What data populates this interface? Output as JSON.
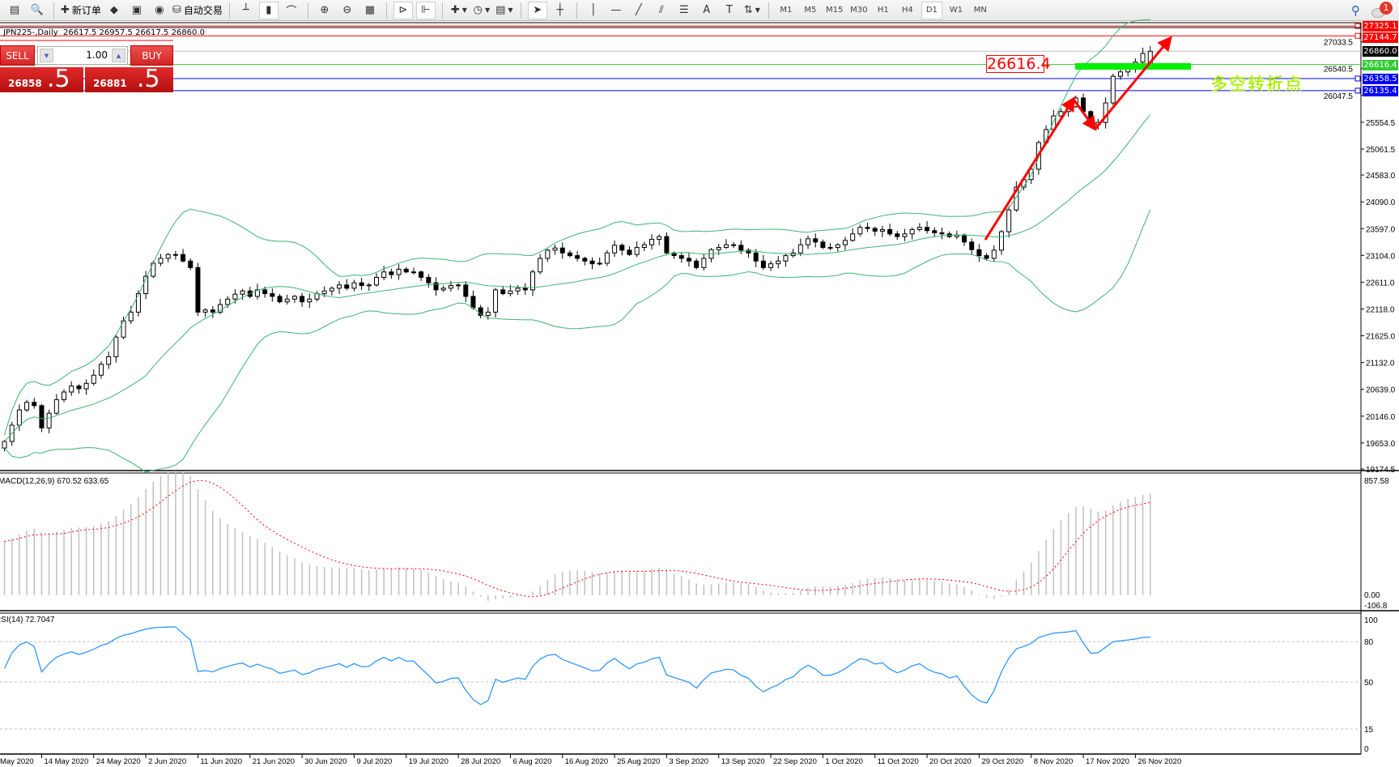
{
  "toolbar": {
    "items": [
      {
        "icon": "profiles-icon",
        "glyph": "▤"
      },
      {
        "icon": "zoom-window-icon",
        "glyph": "🔍"
      },
      {
        "sep": true
      },
      {
        "icon": "new-order-icon",
        "glyph": "✚",
        "label": "新订单"
      },
      {
        "icon": "metaeditor-icon",
        "glyph": "◆"
      },
      {
        "icon": "navigator-icon",
        "glyph": "▣"
      },
      {
        "icon": "signals-icon",
        "glyph": "◉"
      },
      {
        "icon": "auto-trading-icon",
        "glyph": "⛁",
        "label": "自动交易"
      },
      {
        "sep": true
      },
      {
        "icon": "bar-chart-icon",
        "glyph": "┴"
      },
      {
        "icon": "candlestick-chart-icon",
        "glyph": "▮",
        "active": true
      },
      {
        "icon": "line-chart-icon",
        "glyph": "⌒"
      },
      {
        "sep": true
      },
      {
        "icon": "zoom-in-icon",
        "glyph": "⊕"
      },
      {
        "icon": "zoom-out-icon",
        "glyph": "⊖"
      },
      {
        "icon": "tile-windows-icon",
        "glyph": "▦"
      },
      {
        "sep": true
      },
      {
        "icon": "auto-scroll-icon",
        "glyph": "⊳",
        "active": true
      },
      {
        "icon": "chart-shift-icon",
        "glyph": "⊩",
        "active": true
      },
      {
        "sep": true
      },
      {
        "icon": "indicators-icon",
        "glyph": "✚",
        "dropdown": true
      },
      {
        "icon": "periods-clock-icon",
        "glyph": "◷",
        "dropdown": true
      },
      {
        "icon": "templates-icon",
        "glyph": "▤",
        "dropdown": true
      },
      {
        "sep": true
      },
      {
        "icon": "cursor-icon",
        "glyph": "➤",
        "active": true
      },
      {
        "icon": "crosshair-icon",
        "glyph": "┼"
      },
      {
        "sep": true
      },
      {
        "icon": "vertical-line-icon",
        "glyph": "│"
      },
      {
        "icon": "horizontal-line-icon",
        "glyph": "—"
      },
      {
        "icon": "trendline-icon",
        "glyph": "╱"
      },
      {
        "icon": "equidistant-channel-icon",
        "glyph": "⫽"
      },
      {
        "icon": "fibonacci-icon",
        "glyph": "☰"
      },
      {
        "icon": "text-icon",
        "glyph": "A"
      },
      {
        "icon": "text-label-icon",
        "glyph": "T"
      },
      {
        "icon": "arrows-icon",
        "glyph": "⇅",
        "dropdown": true
      },
      {
        "sep": true
      }
    ],
    "timeframes": [
      "M1",
      "M5",
      "M15",
      "M30",
      "H1",
      "H4",
      "D1",
      "W1",
      "MN"
    ],
    "active_timeframe": "D1",
    "notification_count": "1"
  },
  "chart_header": {
    "symbol": "JPN225-,Daily",
    "ohlc": "26617.5 26957.5 26617.5 26860.0"
  },
  "trade_panel": {
    "sell_label": "SELL",
    "buy_label": "BUY",
    "lot": "1.00",
    "sell_price_main": "26858",
    "sell_price_big": ".5",
    "buy_price_main": "26881",
    "buy_price_big": ".5"
  },
  "annotations": {
    "price_box": "26616.4",
    "chinese_text": "多空转折点"
  },
  "price_levels": [
    {
      "price": 27325.1,
      "label": "27325.1",
      "color": "#ff0000"
    },
    {
      "price": 27144.7,
      "label": "27144.7",
      "color": "#ff0000"
    },
    {
      "price": 26860.0,
      "label": "26860.0",
      "color": "#000000"
    },
    {
      "price": 26616.4,
      "label": "26616.4",
      "color": "#33cc33"
    },
    {
      "price": 26358.5,
      "label": "26358.5",
      "color": "#0000ff"
    },
    {
      "price": 26135.4,
      "label": "26135.4",
      "color": "#0000ff"
    }
  ],
  "colors": {
    "bollinger": "#3cb371",
    "macd_hist": "#c0c0c0",
    "macd_signal": "#ff0000",
    "rsi": "#1e90ff",
    "arrow": "#ff0000",
    "pivot_bar": "#00ee00"
  },
  "chart_data": [
    {
      "type": "candlestick",
      "title": "JPN225-,Daily",
      "ylim": [
        19174.5,
        27386
      ],
      "y_ticks": [
        "27033.5",
        "26540.5",
        "26047.5",
        "25554.5",
        "25061.5",
        "24583.0",
        "24090.0",
        "23597.0",
        "23104.0",
        "22611.0",
        "22118.0",
        "21625.0",
        "21132.0",
        "20639.0",
        "20146.0",
        "19653.0",
        "19174.5"
      ],
      "x_ticks": [
        "May 2020",
        "14 May 2020",
        "24 May 2020",
        "2 Jun 2020",
        "11 Jun 2020",
        "21 Jun 2020",
        "30 Jun 2020",
        "9 Jul 2020",
        "19 Jul 2020",
        "28 Jul 2020",
        "6 Aug 2020",
        "16 Aug 2020",
        "25 Aug 2020",
        "3 Sep 2020",
        "13 Sep 2020",
        "22 Sep 2020",
        "1 Oct 2020",
        "11 Oct 2020",
        "20 Oct 2020",
        "29 Oct 2020",
        "8 Nov 2020",
        "17 Nov 2020",
        "26 Nov 2020"
      ],
      "last_bar": {
        "open": 26617.5,
        "high": 26957.5,
        "low": 26617.5,
        "close": 26860.0
      },
      "closes": [
        19680,
        19980,
        20260,
        20400,
        20340,
        19930,
        20200,
        20450,
        20590,
        20700,
        20650,
        20750,
        20900,
        21100,
        21240,
        21600,
        21900,
        22060,
        22400,
        22720,
        22960,
        23050,
        23120,
        23120,
        23000,
        22880,
        22060,
        22100,
        22060,
        22200,
        22300,
        22390,
        22450,
        22350,
        22470,
        22400,
        22350,
        22250,
        22300,
        22350,
        22250,
        22300,
        22400,
        22450,
        22500,
        22560,
        22500,
        22600,
        22550,
        22560,
        22700,
        22800,
        22750,
        22850,
        22800,
        22800,
        22700,
        22600,
        22470,
        22500,
        22550,
        22560,
        22350,
        22140,
        22000,
        22060,
        22470,
        22400,
        22450,
        22500,
        22470,
        22800,
        23050,
        23200,
        23240,
        23150,
        23100,
        23050,
        23000,
        22950,
        22960,
        23150,
        23290,
        23200,
        23120,
        23250,
        23300,
        23400,
        23450,
        23150,
        23100,
        23050,
        23000,
        22880,
        23050,
        23210,
        23250,
        23300,
        23290,
        23200,
        23150,
        23000,
        22880,
        22950,
        23000,
        23100,
        23150,
        23300,
        23410,
        23350,
        23250,
        23250,
        23300,
        23380,
        23500,
        23620,
        23600,
        23550,
        23580,
        23500,
        23450,
        23500,
        23580,
        23620,
        23560,
        23520,
        23500,
        23450,
        23480,
        23350,
        23210,
        23100,
        23050,
        23200,
        23540,
        23940,
        24360,
        24500,
        24690,
        25180,
        25420,
        25670,
        25750,
        25840,
        26000,
        25750,
        25510,
        25550,
        25910,
        26400,
        26480,
        26570,
        26660,
        26820,
        26860
      ],
      "indicators": [
        "Bollinger Bands"
      ]
    },
    {
      "type": "bar",
      "title": "MACD(12,26,9) 670.52 633.65",
      "y_ticks": [
        "857.58",
        "0.00",
        "-106.8"
      ],
      "ylim": [
        -106.8,
        857.58
      ]
    },
    {
      "type": "line",
      "title": "RSI(14) 72.7047",
      "y_ticks": [
        "100",
        "80",
        "50",
        "15",
        "0"
      ],
      "ylim": [
        0,
        100
      ],
      "levels": [
        80,
        50,
        15
      ]
    }
  ]
}
